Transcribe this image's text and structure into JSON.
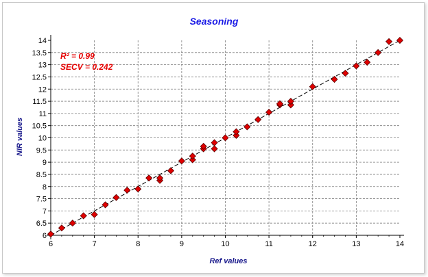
{
  "chart_data": {
    "type": "scatter",
    "title": "Seasoning",
    "xlabel": "Ref values",
    "ylabel": "NIR values",
    "xlim": [
      6,
      14
    ],
    "ylim": [
      6,
      14
    ],
    "x_ticks": [
      "6",
      "7",
      "8",
      "9",
      "10",
      "11",
      "12",
      "13",
      "14"
    ],
    "y_ticks": [
      "6",
      "6.5",
      "7",
      "7.5",
      "8",
      "8.5",
      "9",
      "9.5",
      "10",
      "10.5",
      "11",
      "11.5",
      "12",
      "12.5",
      "13",
      "13.5",
      "14"
    ],
    "grid": true,
    "annotations": [
      "R² = 0.99",
      "SECV = 0.242"
    ],
    "fit_line": {
      "from": [
        6,
        6
      ],
      "to": [
        14,
        14
      ],
      "style": "dashed"
    },
    "marker_color": "#e00000",
    "series": [
      {
        "x": [
          6.0,
          6.25,
          6.5,
          6.75,
          7.0,
          7.25,
          7.5,
          7.75,
          8.0,
          8.25,
          8.5,
          8.5,
          8.75,
          9.0,
          9.25,
          9.25,
          9.5,
          9.5,
          9.75,
          9.75,
          10.0,
          10.25,
          10.25,
          10.5,
          10.75,
          11.0,
          11.25,
          11.25,
          11.5,
          11.5,
          12.0,
          12.5,
          12.75,
          13.0,
          13.25,
          13.5,
          13.75,
          14.0
        ],
        "y": [
          6.05,
          6.3,
          6.5,
          6.8,
          6.85,
          7.25,
          7.55,
          7.85,
          7.9,
          8.35,
          8.25,
          8.35,
          8.65,
          9.05,
          9.1,
          9.25,
          9.55,
          9.65,
          9.55,
          9.8,
          10.0,
          10.1,
          10.25,
          10.45,
          10.75,
          11.05,
          11.35,
          11.4,
          11.35,
          11.5,
          12.1,
          12.4,
          12.65,
          12.95,
          13.1,
          13.5,
          13.95,
          14.0
        ]
      }
    ]
  }
}
